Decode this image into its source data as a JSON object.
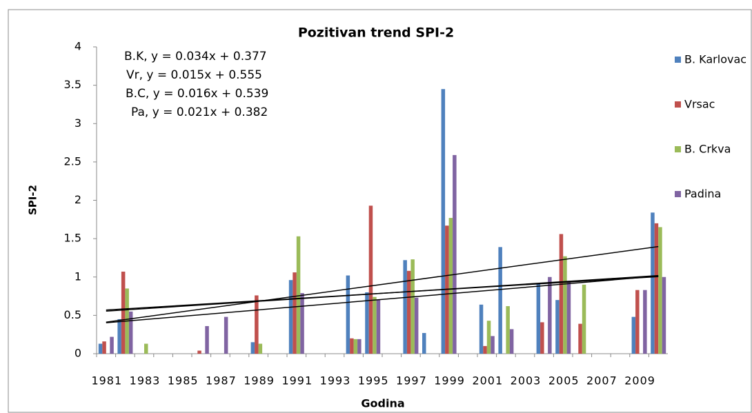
{
  "chart_data": {
    "type": "bar",
    "title": "Pozitivan trend SPI-2",
    "y_label": "SPI-2",
    "x_label": "Godina",
    "categories": [
      "1981",
      null,
      "1983",
      null,
      "1985",
      null,
      "1987",
      null,
      "1989",
      null,
      "1991",
      null,
      "1993",
      null,
      "1995",
      null,
      "1997",
      null,
      "1999",
      null,
      "2001",
      null,
      "2003",
      null,
      "2005",
      null,
      "2007",
      null,
      "2009",
      null
    ],
    "series": [
      {
        "name": "B. Karlovac",
        "color": "#4f81bd",
        "values": [
          0.13,
          0.45,
          0,
          0,
          0,
          0,
          0,
          0,
          0.15,
          0,
          0.96,
          0,
          0,
          1.02,
          0.8,
          0,
          1.22,
          0.27,
          3.45,
          0,
          0.64,
          1.39,
          0,
          0.92,
          0.7,
          0,
          0,
          0,
          0.48,
          1.84
        ]
      },
      {
        "name": "Vrsac",
        "color": "#c0504d",
        "values": [
          0.16,
          1.07,
          0,
          0,
          0,
          0.04,
          0,
          0,
          0.76,
          0,
          1.06,
          0,
          0,
          0.2,
          1.93,
          0,
          1.08,
          0,
          1.67,
          0,
          0.1,
          0,
          0,
          0.41,
          1.56,
          0.39,
          0,
          0,
          0.83,
          1.7
        ]
      },
      {
        "name": "B. Crkva",
        "color": "#9bbb59",
        "values": [
          0,
          0.85,
          0.13,
          0,
          0,
          0,
          0,
          0,
          0.13,
          0,
          1.53,
          0,
          0,
          0.19,
          0.74,
          0,
          1.23,
          0,
          1.77,
          0,
          0.43,
          0.62,
          0,
          0,
          1.27,
          0.9,
          0,
          0,
          0,
          1.65
        ]
      },
      {
        "name": "Padina",
        "color": "#8064a2",
        "values": [
          0.22,
          0.55,
          0,
          0,
          0,
          0.36,
          0.48,
          0,
          0,
          0,
          0.79,
          0,
          0,
          0.19,
          0.7,
          0,
          0.73,
          0,
          2.59,
          0,
          0.23,
          0.32,
          0,
          1.0,
          0.95,
          0,
          0,
          0,
          0.83,
          1.0
        ]
      }
    ],
    "annotations": [
      {
        "text": "B.K, y = 0.034x + 0.377",
        "color": "#4f81bd"
      },
      {
        "text": "Vr, y = 0.015x + 0.555",
        "color": "#c0504d"
      },
      {
        "text": "B.C, y = 0.016x + 0.539",
        "color": "#9bbb59"
      },
      {
        "text": "Pa, y = 0.021x + 0.382",
        "color": "#8064a2"
      }
    ],
    "trendlines": [
      {
        "slope": 0.034,
        "intercept": 0.377
      },
      {
        "slope": 0.015,
        "intercept": 0.555
      },
      {
        "slope": 0.016,
        "intercept": 0.539
      },
      {
        "slope": 0.021,
        "intercept": 0.382
      }
    ],
    "trendline_color": "#000000",
    "ylim": [
      0,
      4
    ],
    "yticks": [
      0,
      0.5,
      1,
      1.5,
      2,
      2.5,
      3,
      3.5,
      4
    ],
    "legend": "right"
  }
}
